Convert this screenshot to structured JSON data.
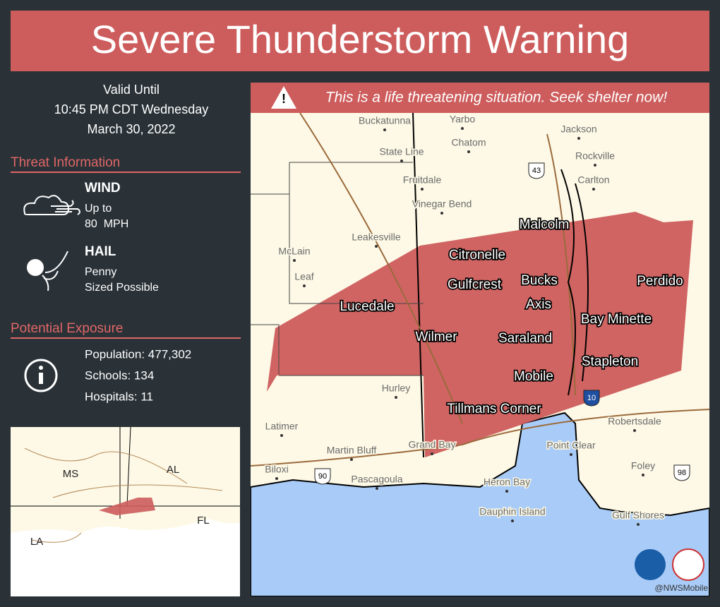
{
  "header": {
    "title": "Severe Thunderstorm Warning"
  },
  "banner": "This is a life threatening situation. Seek shelter now!",
  "valid": [
    "Valid Until",
    "10:45 PM CDT Wednesday",
    "March 30, 2022"
  ],
  "threat": {
    "heading": "Threat Information",
    "items": [
      {
        "name": "WIND",
        "lines": [
          "Up to",
          "80  MPH"
        ]
      },
      {
        "name": "HAIL",
        "lines": [
          "Penny",
          "Sized Possible"
        ]
      }
    ]
  },
  "exposure": {
    "heading": "Potential Exposure",
    "lines": [
      "Population: 477,302",
      "Schools: 134",
      "Hospitals: 11"
    ]
  },
  "map": {
    "major_places": [
      "Malcolm",
      "Citronelle",
      "Gulfcrest",
      "Bucks",
      "Perdido",
      "Axis",
      "Lucedale",
      "Bay Minette",
      "Wilmer",
      "Saraland",
      "Stapleton",
      "Mobile",
      "Tillmans Corner"
    ],
    "minor_places": [
      "Buckatunna",
      "Yarbo",
      "Jackson",
      "State Line",
      "Chatom",
      "Rockville",
      "Fruitdale",
      "Carlton",
      "Vinegar Bend",
      "Leakesville",
      "McLain",
      "Leaf",
      "Hurley",
      "Latimer",
      "Martin Bluff",
      "Grand Bay",
      "Point Clear",
      "Robertsdale",
      "Biloxi",
      "Pascagoula",
      "Heron Bay",
      "Foley",
      "Dauphin Island",
      "Gulf Shores"
    ],
    "shields": [
      "43",
      "90",
      "10",
      "98"
    ]
  },
  "inset": {
    "labels": [
      "MS",
      "AL",
      "LA",
      "FL"
    ]
  },
  "credit": "@NWSMobile"
}
